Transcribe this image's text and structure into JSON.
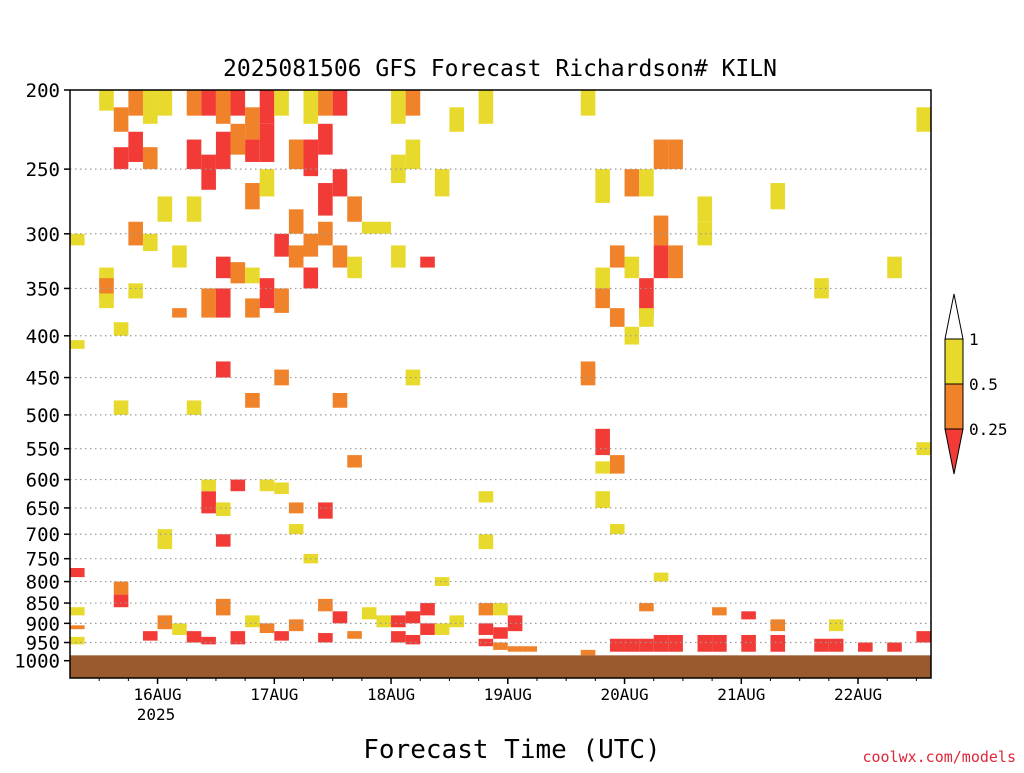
{
  "chart_data": {
    "type": "heatmap",
    "title": "2025081506 GFS Forecast Richardson# KILN",
    "xlabel": "Forecast Time (UTC)",
    "ylabel": "",
    "credit": "coolwx.com/models",
    "x_ticks": [
      "16AUG",
      "17AUG",
      "18AUG",
      "19AUG",
      "20AUG",
      "21AUG",
      "22AUG"
    ],
    "x_tick_year": "2025",
    "xlim_hours": [
      6,
      183
    ],
    "y_scale": "log",
    "ylim": [
      1050,
      200
    ],
    "y_ticks": [
      "200",
      "250",
      "300",
      "350",
      "400",
      "450",
      "500",
      "550",
      "600",
      "650",
      "700",
      "750",
      "800",
      "850",
      "900",
      "950",
      "1000"
    ],
    "grid": true,
    "surface_color": "#9B5A2E",
    "legend": {
      "position": "right",
      "labels": [
        "1",
        "0.5",
        "0.25"
      ],
      "colors": [
        "#ffffff",
        "#E8DA2C",
        "#F0822A",
        "#F23B36"
      ],
      "levels": [
        "1",
        "0.5",
        "0.25"
      ]
    },
    "category_colors": {
      "Y": "#E8DA2C",
      "O": "#F0822A",
      "R": "#F23B36"
    },
    "cell_hours": 3,
    "cell_legend": "each cell is [forecast hour start, top hPa, bottom hPa, class], class Y = 0.5-1, O = 0.25-0.5, R = <0.25",
    "cells": [
      [
        6,
        300,
        310,
        "Y"
      ],
      [
        6,
        405,
        415,
        "Y"
      ],
      [
        6,
        770,
        790,
        "R"
      ],
      [
        6,
        860,
        880,
        "Y"
      ],
      [
        6,
        905,
        915,
        "O"
      ],
      [
        6,
        935,
        955,
        "Y"
      ],
      [
        12,
        200,
        212,
        "Y"
      ],
      [
        12,
        330,
        345,
        "Y"
      ],
      [
        12,
        340,
        360,
        "O"
      ],
      [
        12,
        355,
        370,
        "Y"
      ],
      [
        15,
        210,
        225,
        "O"
      ],
      [
        15,
        235,
        250,
        "R"
      ],
      [
        15,
        385,
        400,
        "Y"
      ],
      [
        15,
        480,
        500,
        "Y"
      ],
      [
        15,
        800,
        830,
        "O"
      ],
      [
        15,
        830,
        860,
        "R"
      ],
      [
        18,
        200,
        215,
        "O"
      ],
      [
        18,
        225,
        245,
        "R"
      ],
      [
        18,
        290,
        310,
        "O"
      ],
      [
        18,
        345,
        360,
        "Y"
      ],
      [
        21,
        200,
        220,
        "Y"
      ],
      [
        21,
        235,
        250,
        "O"
      ],
      [
        21,
        300,
        315,
        "Y"
      ],
      [
        21,
        920,
        945,
        "R"
      ],
      [
        24,
        200,
        215,
        "Y"
      ],
      [
        24,
        270,
        290,
        "Y"
      ],
      [
        24,
        690,
        730,
        "Y"
      ],
      [
        24,
        880,
        915,
        "O"
      ],
      [
        27,
        310,
        330,
        "Y"
      ],
      [
        27,
        370,
        380,
        "O"
      ],
      [
        27,
        900,
        930,
        "Y"
      ],
      [
        30,
        200,
        215,
        "O"
      ],
      [
        30,
        230,
        250,
        "R"
      ],
      [
        30,
        270,
        290,
        "Y"
      ],
      [
        30,
        480,
        500,
        "Y"
      ],
      [
        30,
        920,
        950,
        "R"
      ],
      [
        33,
        200,
        215,
        "R"
      ],
      [
        33,
        240,
        265,
        "R"
      ],
      [
        33,
        350,
        380,
        "O"
      ],
      [
        33,
        620,
        660,
        "R"
      ],
      [
        33,
        600,
        620,
        "Y"
      ],
      [
        33,
        935,
        955,
        "R"
      ],
      [
        36,
        200,
        220,
        "O"
      ],
      [
        36,
        225,
        250,
        "R"
      ],
      [
        36,
        320,
        340,
        "R"
      ],
      [
        36,
        350,
        380,
        "R"
      ],
      [
        36,
        430,
        450,
        "R"
      ],
      [
        36,
        640,
        665,
        "Y"
      ],
      [
        36,
        700,
        725,
        "R"
      ],
      [
        36,
        840,
        880,
        "O"
      ],
      [
        39,
        200,
        215,
        "R"
      ],
      [
        39,
        220,
        240,
        "O"
      ],
      [
        39,
        325,
        345,
        "O"
      ],
      [
        39,
        600,
        620,
        "R"
      ],
      [
        39,
        920,
        955,
        "R"
      ],
      [
        42,
        210,
        230,
        "O"
      ],
      [
        42,
        230,
        245,
        "R"
      ],
      [
        42,
        260,
        280,
        "O"
      ],
      [
        42,
        330,
        345,
        "Y"
      ],
      [
        42,
        360,
        380,
        "O"
      ],
      [
        42,
        470,
        490,
        "O"
      ],
      [
        42,
        880,
        910,
        "Y"
      ],
      [
        45,
        200,
        220,
        "R"
      ],
      [
        45,
        220,
        245,
        "R"
      ],
      [
        45,
        250,
        270,
        "Y"
      ],
      [
        45,
        340,
        370,
        "R"
      ],
      [
        45,
        600,
        620,
        "Y"
      ],
      [
        45,
        900,
        925,
        "O"
      ],
      [
        48,
        200,
        215,
        "Y"
      ],
      [
        48,
        300,
        320,
        "R"
      ],
      [
        48,
        350,
        375,
        "O"
      ],
      [
        48,
        440,
        460,
        "O"
      ],
      [
        48,
        605,
        625,
        "Y"
      ],
      [
        48,
        920,
        945,
        "R"
      ],
      [
        51,
        230,
        250,
        "O"
      ],
      [
        51,
        280,
        300,
        "O"
      ],
      [
        51,
        310,
        330,
        "O"
      ],
      [
        51,
        640,
        660,
        "O"
      ],
      [
        51,
        680,
        700,
        "Y"
      ],
      [
        51,
        890,
        920,
        "O"
      ],
      [
        54,
        200,
        220,
        "Y"
      ],
      [
        54,
        230,
        255,
        "R"
      ],
      [
        54,
        300,
        320,
        "O"
      ],
      [
        54,
        330,
        350,
        "R"
      ],
      [
        54,
        740,
        760,
        "Y"
      ],
      [
        57,
        200,
        215,
        "O"
      ],
      [
        57,
        220,
        240,
        "R"
      ],
      [
        57,
        260,
        285,
        "R"
      ],
      [
        57,
        290,
        310,
        "O"
      ],
      [
        57,
        640,
        670,
        "R"
      ],
      [
        57,
        840,
        870,
        "O"
      ],
      [
        57,
        925,
        950,
        "R"
      ],
      [
        60,
        200,
        215,
        "R"
      ],
      [
        60,
        250,
        270,
        "R"
      ],
      [
        60,
        310,
        330,
        "O"
      ],
      [
        60,
        470,
        490,
        "O"
      ],
      [
        60,
        870,
        900,
        "R"
      ],
      [
        63,
        270,
        290,
        "O"
      ],
      [
        63,
        320,
        340,
        "Y"
      ],
      [
        63,
        560,
        580,
        "O"
      ],
      [
        63,
        920,
        940,
        "O"
      ],
      [
        66,
        290,
        300,
        "Y"
      ],
      [
        66,
        860,
        890,
        "Y"
      ],
      [
        69,
        290,
        300,
        "Y"
      ],
      [
        69,
        880,
        910,
        "Y"
      ],
      [
        72,
        200,
        220,
        "Y"
      ],
      [
        72,
        240,
        260,
        "Y"
      ],
      [
        72,
        310,
        330,
        "Y"
      ],
      [
        72,
        880,
        910,
        "R"
      ],
      [
        72,
        920,
        950,
        "R"
      ],
      [
        75,
        200,
        215,
        "O"
      ],
      [
        75,
        230,
        250,
        "Y"
      ],
      [
        75,
        440,
        460,
        "Y"
      ],
      [
        75,
        870,
        900,
        "R"
      ],
      [
        75,
        930,
        955,
        "R"
      ],
      [
        78,
        320,
        330,
        "R"
      ],
      [
        78,
        850,
        880,
        "R"
      ],
      [
        78,
        900,
        930,
        "R"
      ],
      [
        81,
        250,
        270,
        "Y"
      ],
      [
        81,
        790,
        810,
        "Y"
      ],
      [
        81,
        900,
        930,
        "Y"
      ],
      [
        84,
        210,
        225,
        "Y"
      ],
      [
        84,
        880,
        910,
        "Y"
      ],
      [
        90,
        200,
        220,
        "Y"
      ],
      [
        90,
        620,
        640,
        "Y"
      ],
      [
        90,
        700,
        730,
        "Y"
      ],
      [
        90,
        850,
        880,
        "O"
      ],
      [
        90,
        900,
        930,
        "R"
      ],
      [
        90,
        940,
        960,
        "R"
      ],
      [
        93,
        850,
        880,
        "Y"
      ],
      [
        93,
        910,
        940,
        "R"
      ],
      [
        93,
        950,
        970,
        "O"
      ],
      [
        96,
        880,
        920,
        "R"
      ],
      [
        96,
        960,
        975,
        "O"
      ],
      [
        99,
        960,
        975,
        "O"
      ],
      [
        111,
        200,
        215,
        "Y"
      ],
      [
        111,
        430,
        460,
        "O"
      ],
      [
        111,
        970,
        985,
        "O"
      ],
      [
        114,
        250,
        275,
        "Y"
      ],
      [
        114,
        330,
        350,
        "Y"
      ],
      [
        114,
        350,
        370,
        "O"
      ],
      [
        114,
        520,
        560,
        "R"
      ],
      [
        114,
        570,
        590,
        "Y"
      ],
      [
        114,
        620,
        650,
        "Y"
      ],
      [
        117,
        310,
        330,
        "O"
      ],
      [
        117,
        370,
        390,
        "O"
      ],
      [
        117,
        560,
        590,
        "O"
      ],
      [
        117,
        680,
        700,
        "Y"
      ],
      [
        117,
        940,
        975,
        "R"
      ],
      [
        120,
        250,
        270,
        "O"
      ],
      [
        120,
        320,
        340,
        "Y"
      ],
      [
        120,
        390,
        410,
        "Y"
      ],
      [
        120,
        940,
        975,
        "R"
      ],
      [
        123,
        250,
        270,
        "Y"
      ],
      [
        123,
        340,
        380,
        "R"
      ],
      [
        123,
        370,
        390,
        "Y"
      ],
      [
        123,
        850,
        870,
        "O"
      ],
      [
        123,
        940,
        975,
        "R"
      ],
      [
        126,
        230,
        250,
        "O"
      ],
      [
        126,
        285,
        310,
        "O"
      ],
      [
        126,
        310,
        340,
        "R"
      ],
      [
        126,
        780,
        800,
        "Y"
      ],
      [
        126,
        930,
        975,
        "R"
      ],
      [
        129,
        230,
        250,
        "O"
      ],
      [
        129,
        310,
        340,
        "O"
      ],
      [
        129,
        930,
        975,
        "R"
      ],
      [
        135,
        270,
        290,
        "Y"
      ],
      [
        135,
        290,
        310,
        "Y"
      ],
      [
        135,
        930,
        975,
        "R"
      ],
      [
        138,
        860,
        880,
        "O"
      ],
      [
        138,
        930,
        975,
        "R"
      ],
      [
        144,
        870,
        890,
        "R"
      ],
      [
        144,
        930,
        975,
        "R"
      ],
      [
        150,
        260,
        280,
        "Y"
      ],
      [
        150,
        890,
        920,
        "O"
      ],
      [
        150,
        930,
        975,
        "R"
      ],
      [
        159,
        340,
        360,
        "Y"
      ],
      [
        159,
        940,
        975,
        "R"
      ],
      [
        162,
        890,
        920,
        "Y"
      ],
      [
        162,
        940,
        975,
        "R"
      ],
      [
        168,
        950,
        975,
        "R"
      ],
      [
        174,
        320,
        340,
        "Y"
      ],
      [
        174,
        950,
        975,
        "R"
      ],
      [
        180,
        210,
        225,
        "Y"
      ],
      [
        180,
        540,
        560,
        "Y"
      ],
      [
        180,
        920,
        950,
        "R"
      ]
    ]
  }
}
